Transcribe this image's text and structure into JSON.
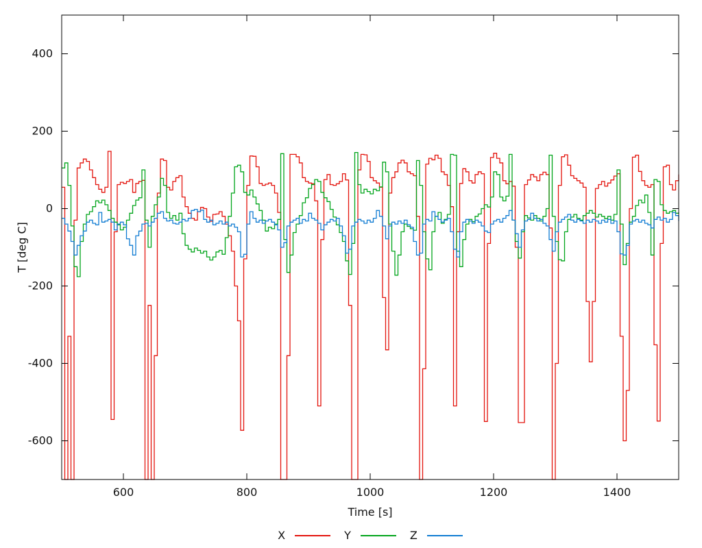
{
  "chart_data": {
    "type": "line",
    "title": "",
    "xlabel": "Time [s]",
    "ylabel": "T [deg C]",
    "xlim": [
      500,
      1500
    ],
    "ylim": [
      -700,
      500
    ],
    "xticks": [
      600,
      800,
      1000,
      1200,
      1400
    ],
    "yticks": [
      400,
      200,
      0,
      -200,
      -400,
      -600
    ],
    "grid": false,
    "legend_position": "bottom-center",
    "line_style": "steps",
    "x_start": 500,
    "x_step": 5,
    "series": [
      {
        "name": "X",
        "color": "#e3120b",
        "values": [
          55,
          -700,
          -330,
          -700,
          -30,
          105,
          118,
          128,
          122,
          100,
          80,
          62,
          50,
          42,
          55,
          148,
          -545,
          -60,
          62,
          68,
          65,
          70,
          75,
          42,
          65,
          70,
          73,
          -700,
          -250,
          -700,
          -380,
          40,
          128,
          124,
          55,
          48,
          70,
          80,
          85,
          30,
          5,
          -12,
          -25,
          -30,
          -8,
          3,
          0,
          -22,
          -33,
          -15,
          -14,
          -8,
          -20,
          -40,
          -70,
          -110,
          -200,
          -290,
          -573,
          -130,
          60,
          136,
          135,
          108,
          65,
          60,
          63,
          66,
          60,
          40,
          -10,
          -700,
          -700,
          -380,
          140,
          140,
          134,
          118,
          80,
          70,
          66,
          64,
          20,
          -510,
          -80,
          75,
          88,
          62,
          60,
          64,
          70,
          90,
          74,
          -250,
          -700,
          -700,
          100,
          140,
          139,
          122,
          80,
          72,
          66,
          55,
          -230,
          -365,
          40,
          80,
          95,
          118,
          125,
          118,
          95,
          90,
          85,
          -20,
          -700,
          -414,
          115,
          130,
          126,
          138,
          130,
          95,
          88,
          60,
          5,
          -510,
          -60,
          65,
          103,
          95,
          72,
          66,
          88,
          95,
          90,
          -550,
          -90,
          132,
          143,
          130,
          118,
          72,
          64,
          70,
          58,
          -100,
          -553,
          -553,
          62,
          74,
          88,
          82,
          72,
          88,
          94,
          88,
          -50,
          -700,
          -400,
          60,
          134,
          139,
          112,
          85,
          78,
          72,
          66,
          55,
          -240,
          -396,
          -240,
          52,
          62,
          70,
          58,
          66,
          74,
          84,
          90,
          -330,
          -600,
          -470,
          0,
          133,
          138,
          96,
          72,
          60,
          55,
          62,
          -352,
          -549,
          -90,
          108,
          112,
          62,
          48,
          72,
          88
        ]
      },
      {
        "name": "Y",
        "color": "#00a41a",
        "values": [
          105,
          118,
          60,
          -45,
          -150,
          -176,
          -85,
          -40,
          -15,
          -8,
          5,
          20,
          15,
          22,
          10,
          -5,
          -25,
          -35,
          -42,
          -55,
          -48,
          -30,
          -12,
          8,
          22,
          28,
          100,
          -30,
          -100,
          -20,
          10,
          30,
          78,
          60,
          -10,
          -25,
          -18,
          -30,
          -12,
          -65,
          -95,
          -105,
          -112,
          -102,
          -108,
          -115,
          -110,
          -125,
          -133,
          -125,
          -112,
          -108,
          -118,
          -75,
          -20,
          40,
          108,
          112,
          95,
          42,
          35,
          48,
          30,
          12,
          -5,
          -30,
          -58,
          -48,
          -52,
          -40,
          -28,
          142,
          -80,
          -165,
          -120,
          -62,
          -40,
          -18,
          15,
          28,
          52,
          62,
          75,
          70,
          42,
          28,
          18,
          -2,
          -22,
          -42,
          -62,
          -85,
          -135,
          -170,
          -90,
          145,
          62,
          40,
          50,
          44,
          38,
          50,
          46,
          56,
          120,
          95,
          -40,
          -110,
          -172,
          -120,
          -60,
          -40,
          -46,
          -52,
          -56,
          124,
          60,
          -60,
          -130,
          -158,
          -60,
          -20,
          -10,
          -38,
          -28,
          -15,
          140,
          138,
          -110,
          -150,
          -80,
          -40,
          -28,
          -34,
          -20,
          -14,
          0,
          10,
          4,
          30,
          95,
          88,
          30,
          20,
          32,
          140,
          -30,
          -85,
          -128,
          -60,
          -18,
          -24,
          -30,
          -18,
          -25,
          -32,
          -20,
          0,
          138,
          -20,
          -85,
          -132,
          -135,
          -60,
          -28,
          -22,
          -15,
          -25,
          -30,
          -18,
          -12,
          -5,
          -12,
          -22,
          -15,
          -20,
          -26,
          -20,
          -30,
          -15,
          100,
          -40,
          -145,
          -90,
          -35,
          -20,
          8,
          22,
          15,
          35,
          -10,
          -120,
          75,
          70,
          10,
          -5,
          -12,
          -8,
          -5,
          -12,
          -10
        ]
      },
      {
        "name": "Z",
        "color": "#0f7bd2",
        "values": [
          -25,
          -40,
          -58,
          -85,
          -120,
          -95,
          -70,
          -58,
          -35,
          -30,
          -38,
          -42,
          -10,
          -35,
          -32,
          -28,
          -35,
          -55,
          -40,
          -35,
          -42,
          -78,
          -95,
          -120,
          -70,
          -58,
          -40,
          -38,
          -45,
          -35,
          -25,
          -12,
          -8,
          -25,
          -32,
          -30,
          -38,
          -40,
          -35,
          -28,
          -32,
          -25,
          -5,
          -2,
          -8,
          -4,
          -28,
          -35,
          -30,
          -42,
          -38,
          -32,
          -40,
          -35,
          -45,
          -40,
          -48,
          -60,
          -125,
          -118,
          -40,
          -8,
          -25,
          -35,
          -30,
          -38,
          -32,
          -28,
          -35,
          -42,
          -55,
          -100,
          -88,
          -45,
          -35,
          -30,
          -25,
          -38,
          -28,
          -32,
          -12,
          -25,
          -30,
          -38,
          -55,
          -42,
          -35,
          -28,
          -32,
          -25,
          -45,
          -70,
          -115,
          -105,
          -45,
          -35,
          -28,
          -32,
          -38,
          -30,
          -35,
          -25,
          -5,
          -20,
          -45,
          -78,
          -45,
          -35,
          -40,
          -32,
          -38,
          -30,
          -42,
          -48,
          -85,
          -120,
          -115,
          -40,
          -28,
          -32,
          -8,
          -20,
          -28,
          -35,
          -30,
          -25,
          -60,
          -105,
          -125,
          -60,
          -35,
          -28,
          -32,
          -38,
          -30,
          -35,
          -45,
          -58,
          -62,
          -40,
          -32,
          -28,
          -35,
          -25,
          -18,
          -5,
          -30,
          -65,
          -100,
          -55,
          -32,
          -28,
          -12,
          -25,
          -32,
          -28,
          -38,
          -45,
          -80,
          -110,
          -60,
          -35,
          -28,
          -22,
          -15,
          -30,
          -35,
          -28,
          -32,
          -38,
          -30,
          -35,
          -28,
          -32,
          -38,
          -30,
          -35,
          -28,
          -38,
          -32,
          -60,
          -117,
          -120,
          -95,
          -40,
          -32,
          -28,
          -35,
          -30,
          -38,
          -42,
          -50,
          -28,
          -22,
          -30,
          -25,
          -35,
          -28,
          -10,
          -18,
          -32
        ]
      }
    ]
  },
  "colors": {
    "background": "#ffffff",
    "axis": "#000000",
    "text": "#111111"
  }
}
